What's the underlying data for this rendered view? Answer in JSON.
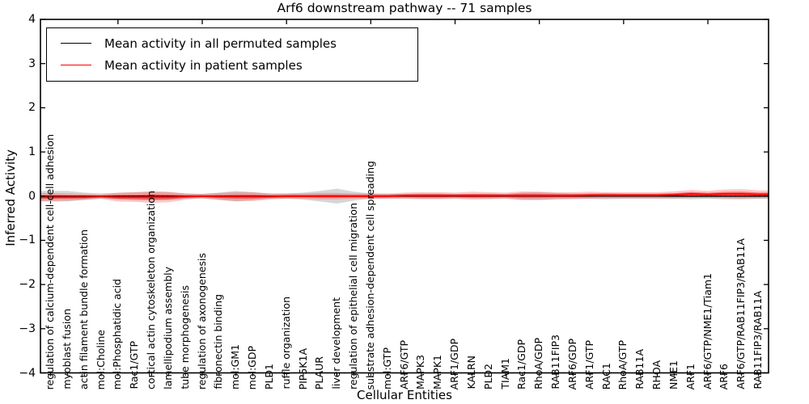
{
  "title": "Arf6 downstream pathway -- 71 samples",
  "legend": [
    {
      "label": "Mean activity in all permuted samples",
      "color": "#000000"
    },
    {
      "label": "Mean activity in patient samples",
      "color": "#ff0000"
    }
  ],
  "chart_data": {
    "type": "line",
    "title": "Arf6 downstream pathway -- 71 samples",
    "xlabel": "Cellular Entities",
    "ylabel": "Inferred Activity",
    "ylim": [
      -4,
      4
    ],
    "yticks": [
      4,
      3,
      2,
      1,
      0,
      -1,
      -2,
      -3,
      -4
    ],
    "ytick_labels": [
      "4",
      "3",
      "2",
      "1",
      "0",
      "−1",
      "−2",
      "−3",
      "−4"
    ],
    "grid": false,
    "legend_position": "upper left",
    "zero_line_style": "dotted",
    "colors": {
      "permuted_line": "#000000",
      "patient_line": "#ff0000",
      "permuted_band": "rgba(120,120,120,0.30)",
      "patient_band_outer": "rgba(255,0,0,0.22)",
      "patient_band_inner": "rgba(255,0,0,0.45)"
    },
    "categories": [
      "regulation of calcium-dependent cell-cell adhesion",
      "myoblast fusion",
      "actin filament bundle formation",
      "mol:Choline",
      "mol:Phosphatidic acid",
      "Rac1/GTP",
      "cortical actin cytoskeleton organization",
      "lamellipodium assembly",
      "tube morphogenesis",
      "regulation of axonogenesis",
      "fibronectin binding",
      "mol:GM1",
      "mol:GDP",
      "PLD1",
      "ruffle organization",
      "PIP5K1A",
      "PLAUR",
      "liver development",
      "regulation of epithelial cell migration",
      "substrate adhesion-dependent cell spreading",
      "mol:GTP",
      "ARF6/GTP",
      "MAPK3",
      "MAPK1",
      "ARF1/GDP",
      "KALRN",
      "PLD2",
      "TIAM1",
      "Rac1/GDP",
      "RhoA/GDP",
      "RAB11FIP3",
      "ARF6/GDP",
      "ARF1/GTP",
      "RAC1",
      "RhoA/GTP",
      "RAB11A",
      "RHOA",
      "NME1",
      "ARF1",
      "ARF6/GTP/NME1/Tiam1",
      "ARF6",
      "ARF6/GTP/RAB11FIP3/RAB11A",
      "RAB11FIP3/RAB11A"
    ],
    "series": [
      {
        "name": "Mean activity in all permuted samples",
        "color": "#000000",
        "values": [
          0,
          0,
          0,
          0,
          0,
          0,
          0,
          0,
          0,
          0,
          0,
          0,
          0,
          0,
          0,
          0,
          0,
          0,
          0,
          0,
          0,
          0,
          0,
          0,
          0,
          0,
          0,
          0,
          0,
          0,
          0,
          0,
          0,
          0,
          0,
          0,
          0,
          0,
          0,
          0,
          0,
          0,
          0
        ],
        "band_halfwidth": [
          0.12,
          0.12,
          0.08,
          0.06,
          0.07,
          0.09,
          0.1,
          0.09,
          0.06,
          0.05,
          0.08,
          0.12,
          0.09,
          0.06,
          0.06,
          0.08,
          0.12,
          0.17,
          0.1,
          0.06,
          0.05,
          0.05,
          0.06,
          0.06,
          0.05,
          0.05,
          0.06,
          0.05,
          0.08,
          0.09,
          0.07,
          0.06,
          0.06,
          0.07,
          0.06,
          0.06,
          0.06,
          0.06,
          0.07,
          0.06,
          0.07,
          0.07,
          0.06
        ]
      },
      {
        "name": "Mean activity in patient samples",
        "color": "#ff0000",
        "values": [
          -0.02,
          -0.02,
          -0.02,
          -0.01,
          -0.02,
          -0.02,
          -0.02,
          -0.02,
          -0.01,
          0,
          -0.01,
          -0.01,
          -0.01,
          -0.01,
          0,
          0,
          0,
          0,
          0,
          0,
          0,
          0.01,
          0.01,
          0.01,
          0.01,
          0.01,
          0.01,
          0.01,
          0.01,
          0.01,
          0.01,
          0.01,
          0.02,
          0.02,
          0.02,
          0.02,
          0.02,
          0.03,
          0.05,
          0.04,
          0.05,
          0.05,
          0.04
        ],
        "band_halfwidth": [
          0.09,
          0.08,
          0.07,
          0.05,
          0.1,
          0.11,
          0.13,
          0.12,
          0.07,
          0.05,
          0.08,
          0.1,
          0.1,
          0.07,
          0.06,
          0.06,
          0.07,
          0.07,
          0.06,
          0.06,
          0.06,
          0.07,
          0.08,
          0.08,
          0.07,
          0.09,
          0.08,
          0.07,
          0.1,
          0.09,
          0.08,
          0.08,
          0.08,
          0.07,
          0.07,
          0.07,
          0.07,
          0.08,
          0.09,
          0.08,
          0.1,
          0.11,
          0.09
        ]
      }
    ]
  }
}
